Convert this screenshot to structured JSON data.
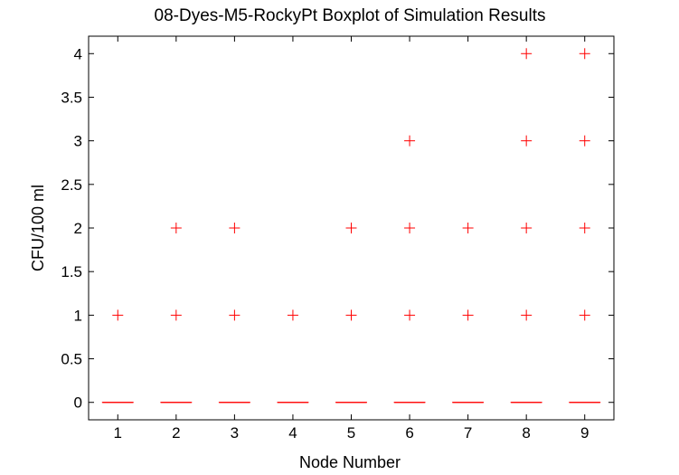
{
  "chart_data": {
    "type": "boxplot",
    "title": "08-Dyes-M5-RockyPt Boxplot of Simulation Results",
    "xlabel": "Node Number",
    "ylabel": "CFU/100 ml",
    "xlim": [
      0.5,
      9.5
    ],
    "ylim": [
      -0.2,
      4.2
    ],
    "x_ticks": [
      "1",
      "2",
      "3",
      "4",
      "5",
      "6",
      "7",
      "8",
      "9"
    ],
    "y_ticks": [
      "0",
      "0.5",
      "1",
      "1.5",
      "2",
      "2.5",
      "3",
      "3.5",
      "4"
    ],
    "grid": false,
    "box_color": "#ff0000",
    "outlier_marker": "+",
    "boxes": [
      {
        "node": 1,
        "median": 0,
        "q1": 0,
        "q3": 0,
        "outliers": [
          1
        ]
      },
      {
        "node": 2,
        "median": 0,
        "q1": 0,
        "q3": 0,
        "outliers": [
          1,
          2
        ]
      },
      {
        "node": 3,
        "median": 0,
        "q1": 0,
        "q3": 0,
        "outliers": [
          1,
          2
        ]
      },
      {
        "node": 4,
        "median": 0,
        "q1": 0,
        "q3": 0,
        "outliers": [
          1
        ]
      },
      {
        "node": 5,
        "median": 0,
        "q1": 0,
        "q3": 0,
        "outliers": [
          1,
          2
        ]
      },
      {
        "node": 6,
        "median": 0,
        "q1": 0,
        "q3": 0,
        "outliers": [
          1,
          2,
          3
        ]
      },
      {
        "node": 7,
        "median": 0,
        "q1": 0,
        "q3": 0,
        "outliers": [
          1,
          2
        ]
      },
      {
        "node": 8,
        "median": 0,
        "q1": 0,
        "q3": 0,
        "outliers": [
          1,
          2,
          3,
          4
        ]
      },
      {
        "node": 9,
        "median": 0,
        "q1": 0,
        "q3": 0,
        "outliers": [
          1,
          2,
          3,
          4
        ]
      }
    ]
  }
}
